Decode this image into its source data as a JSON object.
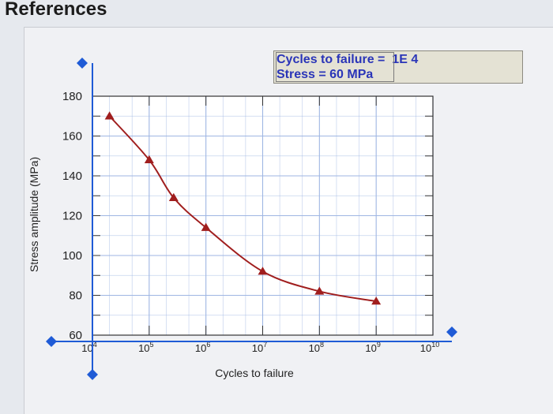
{
  "page": {
    "heading": "References"
  },
  "readout": {
    "label_cycles": "Cycles to failure",
    "value_cycles": "1E 4",
    "label_stress": "Stress",
    "value_stress": "60 MPa"
  },
  "colors": {
    "curve": "#a01e1e",
    "handle": "#1f5bd6",
    "grid": "#9fb6e3",
    "plot_bg": "#ffffff",
    "readout_text": "#2a35b8"
  },
  "chart_data": {
    "type": "line",
    "title": "",
    "xlabel": "Cycles to failure",
    "ylabel": "Stress amplitude (MPa)",
    "x_scale": "log",
    "xlim": [
      10000,
      10000000000
    ],
    "ylim": [
      60,
      180
    ],
    "x_ticks": [
      {
        "value": 10000,
        "base": "10",
        "exp": "4"
      },
      {
        "value": 100000,
        "base": "10",
        "exp": "5"
      },
      {
        "value": 1000000,
        "base": "10",
        "exp": "6"
      },
      {
        "value": 10000000,
        "base": "10",
        "exp": "7"
      },
      {
        "value": 100000000,
        "base": "10",
        "exp": "8"
      },
      {
        "value": 1000000000,
        "base": "10",
        "exp": "9"
      },
      {
        "value": 10000000000,
        "base": "10",
        "exp": "10"
      }
    ],
    "y_ticks": [
      {
        "value": 60,
        "label": "60"
      },
      {
        "value": 80,
        "label": "80"
      },
      {
        "value": 100,
        "label": "100"
      },
      {
        "value": 120,
        "label": "120"
      },
      {
        "value": 140,
        "label": "140"
      },
      {
        "value": 160,
        "label": "160"
      },
      {
        "value": 180,
        "label": "180"
      }
    ],
    "grid": true,
    "series": [
      {
        "points": [
          {
            "x": 20000,
            "y": 170
          },
          {
            "x": 100000,
            "y": 148
          },
          {
            "x": 270000,
            "y": 129
          },
          {
            "x": 1000000,
            "y": 114
          },
          {
            "x": 10000000,
            "y": 92
          },
          {
            "x": 100000000,
            "y": 82
          },
          {
            "x": 1000000000,
            "y": 77
          }
        ]
      }
    ],
    "crosshair": {
      "x": 10000,
      "y": 60
    }
  }
}
